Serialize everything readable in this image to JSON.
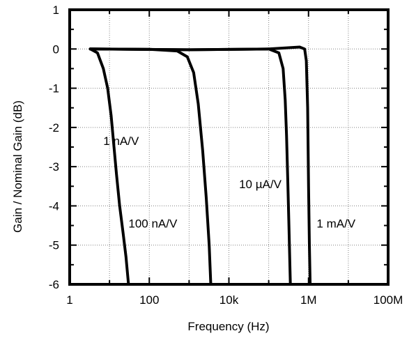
{
  "chart_data": {
    "type": "line",
    "xlabel": "Frequency  (Hz)",
    "ylabel": "Gain / Nominal Gain  (dB)",
    "xscale": "log",
    "xlim": [
      1,
      100000000
    ],
    "ylim": [
      -6,
      1
    ],
    "grid": true,
    "x_ticks": [
      1,
      100,
      10000,
      1000000,
      100000000
    ],
    "x_tick_labels": [
      "1",
      "100",
      "10k",
      "1M",
      "100M"
    ],
    "y_ticks": [
      1,
      0,
      -1,
      -2,
      -3,
      -4,
      -5,
      -6
    ],
    "y_tick_labels": [
      "1",
      "0",
      "-1",
      "-2",
      "-3",
      "-4",
      "-5",
      "-6"
    ],
    "series": [
      {
        "name": "1 nA/V",
        "x": [
          3.3,
          5,
          7,
          9,
          11,
          13,
          15,
          18,
          22,
          26,
          30
        ],
        "y": [
          0,
          -0.1,
          -0.5,
          -1.0,
          -1.7,
          -2.5,
          -3.2,
          -4.0,
          -4.7,
          -5.3,
          -6
        ]
      },
      {
        "name": "100 nA/V",
        "x": [
          3.3,
          100,
          500,
          900,
          1300,
          1700,
          2200,
          2700,
          3200,
          3500
        ],
        "y": [
          0,
          -0.01,
          -0.05,
          -0.2,
          -0.6,
          -1.4,
          -2.6,
          -3.8,
          -5.0,
          -6
        ]
      },
      {
        "name": "10 µA/V",
        "x": [
          3.3,
          1000,
          100000,
          180000,
          230000,
          260000,
          280000,
          300000,
          320000,
          340000,
          350000
        ],
        "y": [
          0,
          -0.02,
          0,
          -0.1,
          -0.5,
          -1.3,
          -2.2,
          -3.3,
          -4.4,
          -5.5,
          -6
        ]
      },
      {
        "name": "1 mA/V",
        "x": [
          3.3,
          1000,
          100000,
          600000,
          800000,
          880000,
          950000,
          1000000,
          1050000,
          1100000
        ],
        "y": [
          0,
          -0.02,
          0,
          0.05,
          0,
          -0.3,
          -1.5,
          -3.5,
          -5.0,
          -6
        ]
      }
    ],
    "annotations": [
      {
        "text": "1 nA/V",
        "x": 7,
        "y": -2.45
      },
      {
        "text": "100 nA/V",
        "x": 30,
        "y": -4.55
      },
      {
        "text": "10 µA/V",
        "x": 18000,
        "y": -3.55
      },
      {
        "text": "1 mA/V",
        "x": 1600000,
        "y": -4.55
      }
    ]
  }
}
